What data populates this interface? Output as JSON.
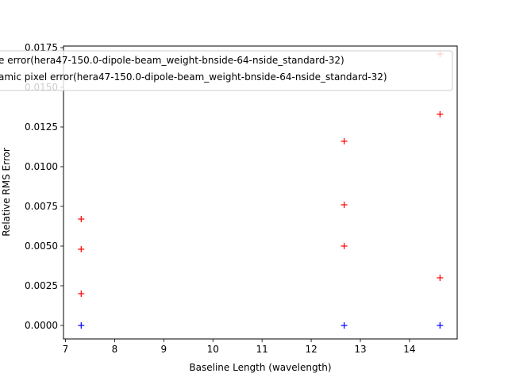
{
  "chart_data": {
    "type": "scatter",
    "title": "",
    "xlabel": "Baseline Length (wavelength)",
    "ylabel": "Relative RMS Error",
    "xlim": [
      6.96,
      14.97
    ],
    "ylim": [
      -0.00085,
      0.0176
    ],
    "xticks": [
      7,
      8,
      9,
      10,
      11,
      12,
      13,
      14
    ],
    "xtick_labels": [
      "7",
      "8",
      "9",
      "10",
      "11",
      "12",
      "13",
      "14"
    ],
    "yticks": [
      0.0,
      0.0025,
      0.005,
      0.0075,
      0.01,
      0.0125,
      0.015,
      0.0175
    ],
    "ytick_labels": [
      "0.0000",
      "0.0025",
      "0.0050",
      "0.0075",
      "0.0100",
      "0.0125",
      "0.0150",
      "0.0175"
    ],
    "grid": false,
    "legend_position": "top",
    "series": [
      {
        "name": "e error(hera47-150.0-dipole-beam_weight-bnside-64-nside_standard-32)",
        "marker": "+",
        "color": "#0000ff",
        "points": [
          {
            "x": 7.32,
            "y": 0.0
          },
          {
            "x": 12.67,
            "y": 0.0
          },
          {
            "x": 14.62,
            "y": 0.0
          }
        ]
      },
      {
        "name": "amic pixel error(hera47-150.0-dipole-beam_weight-bnside-64-nside_standard-32)",
        "marker": "+",
        "color": "#ff0000",
        "points": [
          {
            "x": 7.32,
            "y": 0.0067
          },
          {
            "x": 7.32,
            "y": 0.0048
          },
          {
            "x": 7.32,
            "y": 0.002
          },
          {
            "x": 12.67,
            "y": 0.0116
          },
          {
            "x": 12.67,
            "y": 0.0076
          },
          {
            "x": 12.67,
            "y": 0.005
          },
          {
            "x": 14.62,
            "y": 0.0171
          },
          {
            "x": 14.62,
            "y": 0.0133
          },
          {
            "x": 14.62,
            "y": 0.003
          }
        ]
      }
    ]
  }
}
